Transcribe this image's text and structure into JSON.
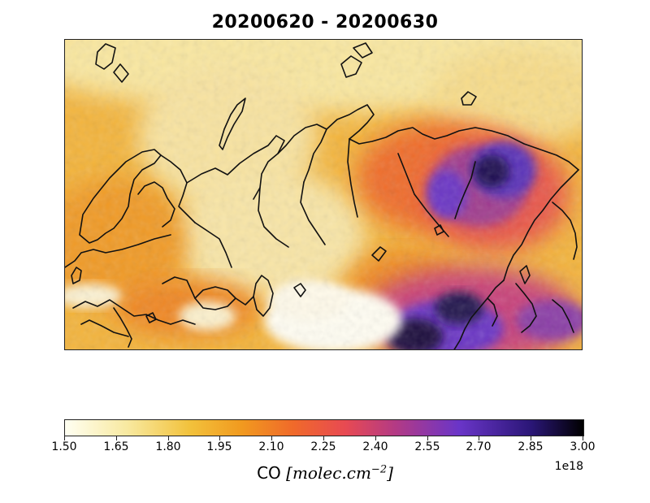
{
  "title": "20200620 - 20200630",
  "colorbar": {
    "ticks": [
      "1.50",
      "1.65",
      "1.80",
      "1.95",
      "2.10",
      "2.25",
      "2.40",
      "2.55",
      "2.70",
      "2.85",
      "3.00"
    ],
    "min": 1.5,
    "max": 3.0,
    "exponent": "1e18",
    "label_prefix": "CO",
    "label_units": "[molec.cm",
    "label_power": "−2",
    "label_close": "]",
    "colors": [
      "#fffff2",
      "#f8e9a0",
      "#f2c23c",
      "#f19a1f",
      "#f06a2a",
      "#e84a52",
      "#b23a86",
      "#6a35c8",
      "#2a1676",
      "#000000"
    ]
  },
  "map": {
    "variable": "CO",
    "land_colors": {
      "low": "#f9ecb6",
      "mid": "#f2b23e",
      "high": "#ef7a22",
      "very_high": "#6a36c4",
      "max": "#1a0d3e"
    }
  }
}
